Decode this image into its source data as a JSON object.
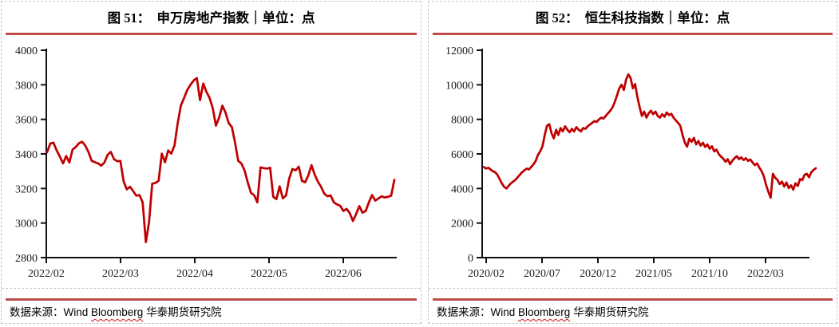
{
  "panels": [
    {
      "title": "图 51：  申万房地产指数｜单位：点"
    },
    {
      "title": "图 52：  恒生科技指数｜单位：点"
    }
  ],
  "footer": {
    "label": "数据来源：",
    "name1": "Wind ",
    "name2": "Bloomberg",
    "name3": " 华泰期货研究院"
  },
  "colors": {
    "line_red": "#c00000",
    "caption_rule_red": "#be4b48",
    "axis_black": "#111111",
    "dashed_border_gray": "#c6c6c6"
  },
  "chart_data": [
    {
      "type": "line",
      "title": "申万房地产指数",
      "unit": "点",
      "ylabel": "点",
      "ylim": [
        2800,
        4000
      ],
      "yticks": [
        4000,
        3800,
        3600,
        3400,
        3200,
        3000,
        2800
      ],
      "xtick_labels": [
        "2022/02",
        "2022/03",
        "2022/04",
        "2022/05",
        "2022/06"
      ],
      "grid": false,
      "legend": "none",
      "line_color": "#c00000",
      "series": [
        {
          "name": "申万房地产指数",
          "values": [
            3410,
            3460,
            3465,
            3420,
            3385,
            3345,
            3388,
            3350,
            3425,
            3440,
            3462,
            3470,
            3448,
            3410,
            3360,
            3352,
            3345,
            3332,
            3350,
            3395,
            3412,
            3370,
            3358,
            3360,
            3242,
            3195,
            3210,
            3185,
            3158,
            3162,
            3120,
            2890,
            3005,
            3228,
            3232,
            3245,
            3402,
            3352,
            3420,
            3402,
            3450,
            3578,
            3680,
            3724,
            3770,
            3800,
            3825,
            3839,
            3711,
            3807,
            3760,
            3724,
            3665,
            3564,
            3610,
            3679,
            3640,
            3578,
            3555,
            3464,
            3360,
            3345,
            3304,
            3235,
            3175,
            3161,
            3120,
            3322,
            3318,
            3315,
            3320,
            3152,
            3139,
            3212,
            3143,
            3160,
            3258,
            3313,
            3305,
            3326,
            3244,
            3236,
            3276,
            3335,
            3280,
            3240,
            3210,
            3170,
            3155,
            3160,
            3120,
            3108,
            3100,
            3070,
            3082,
            3058,
            3012,
            3052,
            3098,
            3060,
            3070,
            3120,
            3162,
            3130,
            3142,
            3155,
            3148,
            3152,
            3158,
            3250
          ]
        }
      ]
    },
    {
      "type": "line",
      "title": "恒生科技指数",
      "unit": "点",
      "ylabel": "点",
      "ylim": [
        0,
        12000
      ],
      "yticks": [
        12000,
        10000,
        8000,
        6000,
        4000,
        2000,
        0
      ],
      "xtick_labels": [
        "2020/02",
        "2020/07",
        "2020/12",
        "2021/05",
        "2021/10",
        "2022/03"
      ],
      "grid": false,
      "legend": "none",
      "line_color": "#c00000",
      "series": [
        {
          "name": "恒生科技指数",
          "values": [
            5250,
            5150,
            5200,
            5100,
            5000,
            4950,
            4800,
            4550,
            4300,
            4100,
            4000,
            4150,
            4300,
            4400,
            4500,
            4650,
            4800,
            4950,
            5050,
            5150,
            5100,
            5250,
            5400,
            5600,
            5950,
            6150,
            6450,
            7100,
            7630,
            7720,
            7200,
            6900,
            7400,
            7100,
            7500,
            7300,
            7600,
            7400,
            7250,
            7450,
            7300,
            7550,
            7400,
            7300,
            7500,
            7450,
            7600,
            7700,
            7800,
            7900,
            7850,
            8000,
            8100,
            8050,
            8200,
            8350,
            8500,
            8700,
            9000,
            9400,
            9800,
            10000,
            9700,
            10300,
            10600,
            10400,
            9800,
            10050,
            9300,
            8700,
            8200,
            8450,
            8100,
            8350,
            8500,
            8300,
            8450,
            8200,
            8100,
            8300,
            8150,
            8400,
            8250,
            8320,
            8100,
            7950,
            7800,
            7630,
            7100,
            6650,
            6420,
            6880,
            6700,
            6930,
            6550,
            6750,
            6480,
            6650,
            6400,
            6550,
            6300,
            6450,
            6150,
            6250,
            6000,
            5850,
            5730,
            5550,
            5700,
            5400,
            5600,
            5750,
            5870,
            5700,
            5800,
            5650,
            5750,
            5600,
            5680,
            5500,
            5350,
            5450,
            5200,
            5000,
            4700,
            4200,
            3800,
            3465,
            4850,
            4620,
            4500,
            4250,
            4400,
            4110,
            4350,
            4020,
            4180,
            3930,
            4300,
            4150,
            4550,
            4480,
            4800,
            4850,
            4650,
            4940,
            5080,
            5170
          ]
        }
      ]
    }
  ]
}
